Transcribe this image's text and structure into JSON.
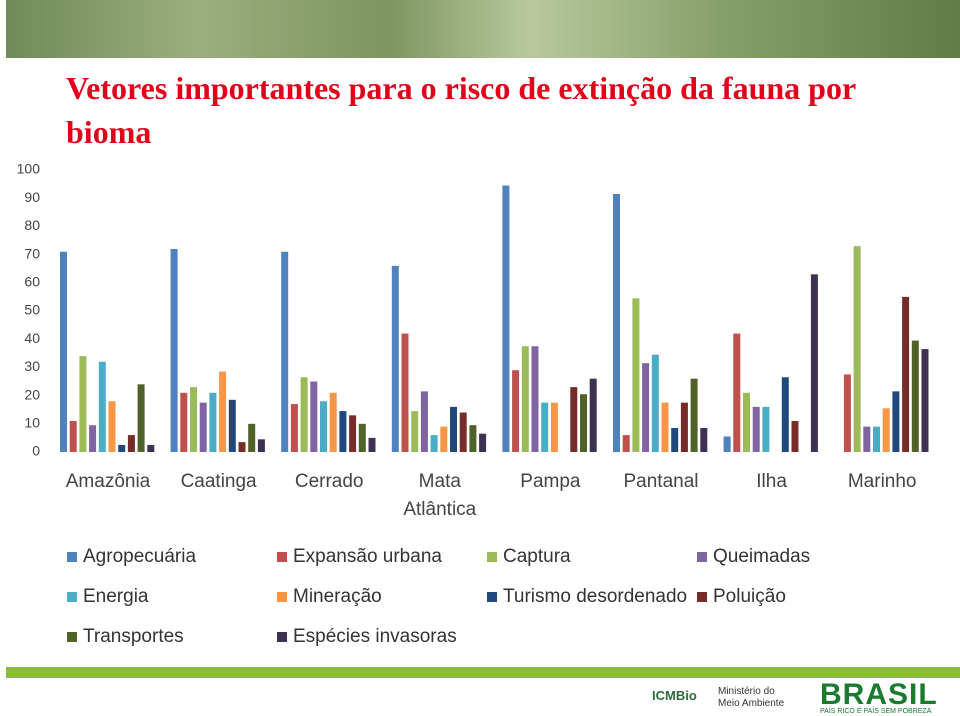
{
  "chart_data": {
    "type": "bar",
    "title": "Vetores importantes para o risco de extinção da fauna por bioma",
    "categories": [
      "Amazônia",
      "Caatinga",
      "Cerrado",
      "Mata Atlântica",
      "Pampa",
      "Pantanal",
      "Ilha",
      "Marinho"
    ],
    "series": [
      {
        "name": "Agropecuária",
        "color": "#4f81bd",
        "values": [
          71,
          72,
          71,
          66,
          94.5,
          91.5,
          5.5,
          0
        ]
      },
      {
        "name": "Expansão urbana",
        "color": "#c0504d",
        "values": [
          11,
          21,
          17,
          42,
          29,
          6,
          42,
          27.5
        ]
      },
      {
        "name": "Captura",
        "color": "#9bbb59",
        "values": [
          34,
          23,
          26.5,
          14.5,
          37.5,
          54.5,
          21,
          73
        ]
      },
      {
        "name": "Queimadas",
        "color": "#8064a2",
        "values": [
          9.5,
          17.5,
          25,
          21.5,
          37.5,
          31.5,
          16,
          9
        ]
      },
      {
        "name": "Energia",
        "color": "#4bacc6",
        "values": [
          32,
          21,
          18,
          6,
          17.5,
          34.5,
          16,
          9
        ]
      },
      {
        "name": "Mineração",
        "color": "#f79646",
        "values": [
          18,
          28.5,
          21,
          9,
          17.5,
          17.5,
          0,
          15.5
        ]
      },
      {
        "name": "Turismo desordenado",
        "color": "#1f497d",
        "values": [
          2.5,
          18.5,
          14.5,
          16,
          0,
          8.5,
          26.5,
          21.5
        ]
      },
      {
        "name": "Poluição",
        "color": "#772c2a",
        "values": [
          6,
          3.5,
          13,
          14,
          23,
          17.5,
          11,
          55
        ]
      },
      {
        "name": "Transportes",
        "color": "#4f6228",
        "values": [
          24,
          10,
          10,
          9.5,
          20.5,
          26,
          0,
          39.5
        ]
      },
      {
        "name": "Espécies invasoras",
        "color": "#3f3151",
        "values": [
          2.5,
          4.5,
          5,
          6.5,
          26,
          8.5,
          63,
          36.5
        ]
      }
    ],
    "ylim": [
      0,
      100
    ],
    "yticks": [
      0,
      10,
      20,
      30,
      40,
      50,
      60,
      70,
      80,
      90,
      100
    ],
    "grid": false,
    "legend": "bottom"
  },
  "footer": {
    "agency": "ICMBio",
    "ministry": "Ministério do Meio Ambiente",
    "brand": "BRASIL",
    "slogan": "PAÍS RICO É PAÍS SEM POBREZA"
  }
}
